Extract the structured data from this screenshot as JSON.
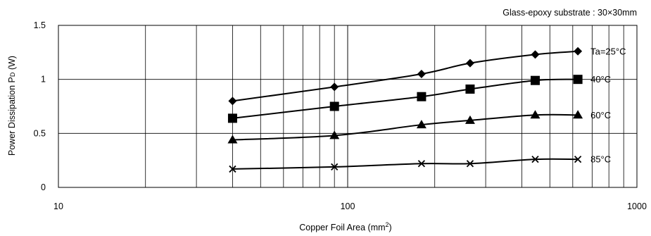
{
  "chart_data": {
    "type": "line",
    "title": "",
    "annotation": "Glass-epoxy substrate : 30×30mm",
    "xlabel": "Copper Foil Area (mm",
    "xlabel_sup": "2",
    "xlabel_suffix": ")",
    "ylabel": "Power Dissipation P",
    "ylabel_sub": "D",
    "ylabel_suffix": " (W)",
    "x_scale": "log",
    "xlim": [
      10,
      1000
    ],
    "ylim": [
      0,
      1.5
    ],
    "x_ticks": [
      10,
      100,
      1000
    ],
    "x_tick_labels": [
      "10",
      "100",
      "1000"
    ],
    "y_ticks": [
      0,
      0.5,
      1,
      1.5
    ],
    "y_tick_labels": [
      "0",
      "0.5",
      "1",
      "1.5"
    ],
    "grid": true,
    "x": [
      40,
      90,
      180,
      265,
      445,
      625
    ],
    "series": [
      {
        "name": "Ta=25°C",
        "marker": "diamond",
        "values": [
          0.8,
          0.93,
          1.05,
          1.15,
          1.23,
          1.26
        ]
      },
      {
        "name": "40°C",
        "marker": "square",
        "values": [
          0.64,
          0.75,
          0.84,
          0.91,
          0.99,
          1.0
        ]
      },
      {
        "name": "60°C",
        "marker": "triangle",
        "values": [
          0.44,
          0.48,
          0.58,
          0.62,
          0.67,
          0.67
        ]
      },
      {
        "name": "85°C",
        "marker": "x",
        "values": [
          0.17,
          0.19,
          0.22,
          0.22,
          0.26,
          0.26
        ]
      }
    ]
  }
}
